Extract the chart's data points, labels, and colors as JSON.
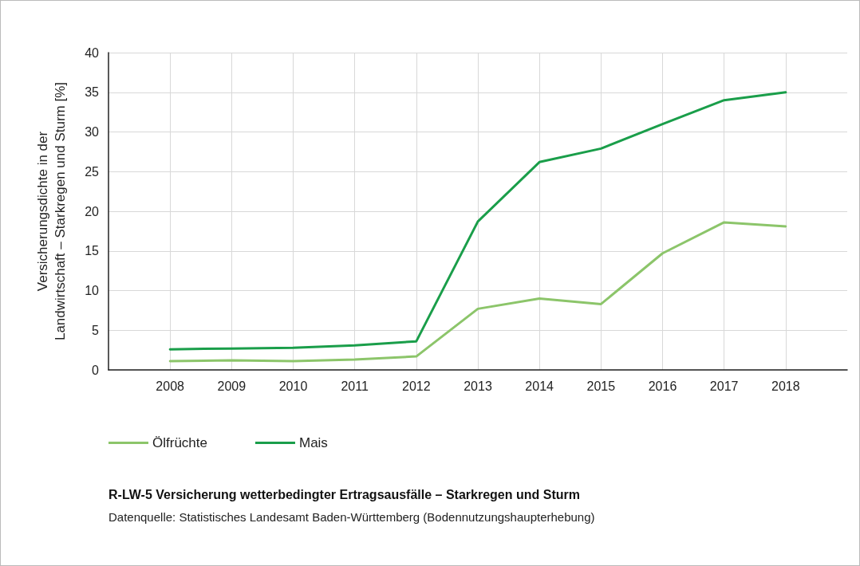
{
  "chart_data": {
    "type": "line",
    "title": "R-LW-5 Versicherung wetterbedingter Ertragsausfälle – Starkregen und Sturm",
    "ylabel": "Versicherungsdichte in der\nLandwirtschaft – Starkregen und Sturm [%]",
    "annotations": [
      "Datenquelle: Statistisches Landesamt Baden-Württemberg (Bodennutzungshaupterhebung)"
    ],
    "x": [
      2008,
      2009,
      2010,
      2011,
      2012,
      2013,
      2014,
      2015,
      2016,
      2017,
      2018
    ],
    "xlim": [
      2007,
      2019
    ],
    "xticks": [
      2008,
      2009,
      2010,
      2011,
      2012,
      2013,
      2014,
      2015,
      2016,
      2017,
      2018
    ],
    "ylim": [
      0,
      40
    ],
    "yticks": [
      0,
      5,
      10,
      15,
      20,
      25,
      30,
      35,
      40
    ],
    "series": [
      {
        "name": "Ölfrüchte",
        "color": "#8cc56a",
        "values": [
          1.1,
          1.2,
          1.1,
          1.3,
          1.7,
          7.7,
          9.0,
          8.3,
          14.7,
          18.6,
          18.1
        ]
      },
      {
        "name": "Mais",
        "color": "#1a9e4a",
        "values": [
          2.6,
          2.7,
          2.8,
          3.1,
          3.6,
          18.7,
          26.2,
          27.9,
          31.0,
          34.0,
          35.0
        ]
      }
    ],
    "grid": true,
    "legend": "bottom left",
    "marker": "none",
    "line_style": "solid"
  }
}
